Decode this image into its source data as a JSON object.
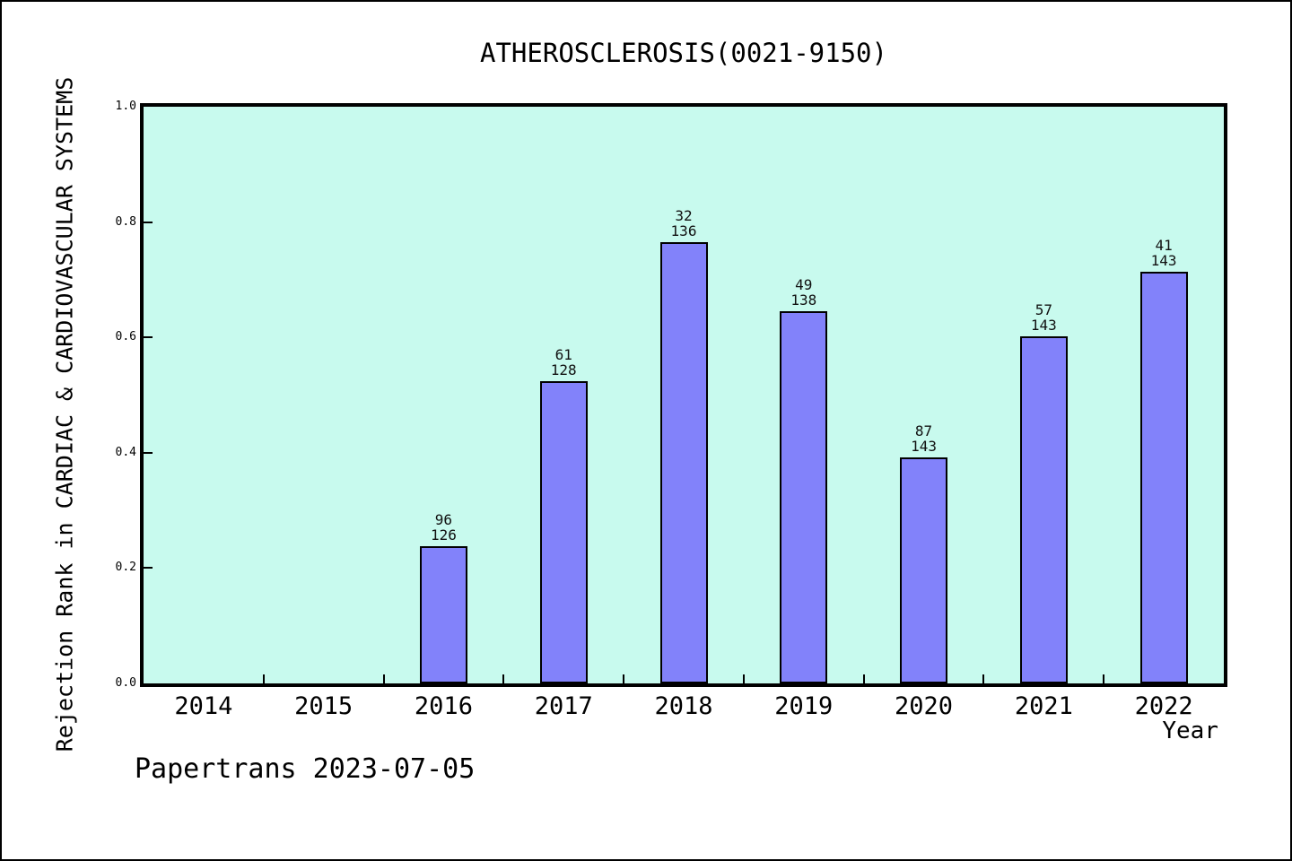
{
  "footer": {
    "text": "Papertrans 2023-07-05"
  },
  "chart_data": {
    "type": "bar",
    "title": "ATHEROSCLEROSIS(0021-9150)",
    "xlabel": "Year",
    "ylabel": "Rejection Rank in CARDIAC & CARDIOVASCULAR SYSTEMS",
    "categories": [
      "2014",
      "2015",
      "2016",
      "2017",
      "2018",
      "2019",
      "2020",
      "2021",
      "2022"
    ],
    "bars": [
      {
        "year": "2014",
        "rank": null,
        "total": null,
        "value": null
      },
      {
        "year": "2015",
        "rank": null,
        "total": null,
        "value": null
      },
      {
        "year": "2016",
        "rank": 96,
        "total": 126,
        "value": 0.2381
      },
      {
        "year": "2017",
        "rank": 61,
        "total": 128,
        "value": 0.5234
      },
      {
        "year": "2018",
        "rank": 32,
        "total": 136,
        "value": 0.7647
      },
      {
        "year": "2019",
        "rank": 49,
        "total": 138,
        "value": 0.6449
      },
      {
        "year": "2020",
        "rank": 87,
        "total": 143,
        "value": 0.3916
      },
      {
        "year": "2021",
        "rank": 57,
        "total": 143,
        "value": 0.6014
      },
      {
        "year": "2022",
        "rank": 41,
        "total": 143,
        "value": 0.7133
      }
    ],
    "bar_label_format": "rank over total, two lines above each bar",
    "value_note": "bar height fraction = 1 - rank/total",
    "yticks": [
      "0.0",
      "0.2",
      "0.4",
      "0.6",
      "0.8",
      "1.0"
    ],
    "ylim": [
      0,
      1
    ],
    "grid": false,
    "legend": false,
    "colors": {
      "bar_fill": "#8282fa",
      "bar_edge": "#000000",
      "plot_bg": "#c8faee",
      "page_bg": "#ffffff",
      "axis": "#000000"
    }
  }
}
